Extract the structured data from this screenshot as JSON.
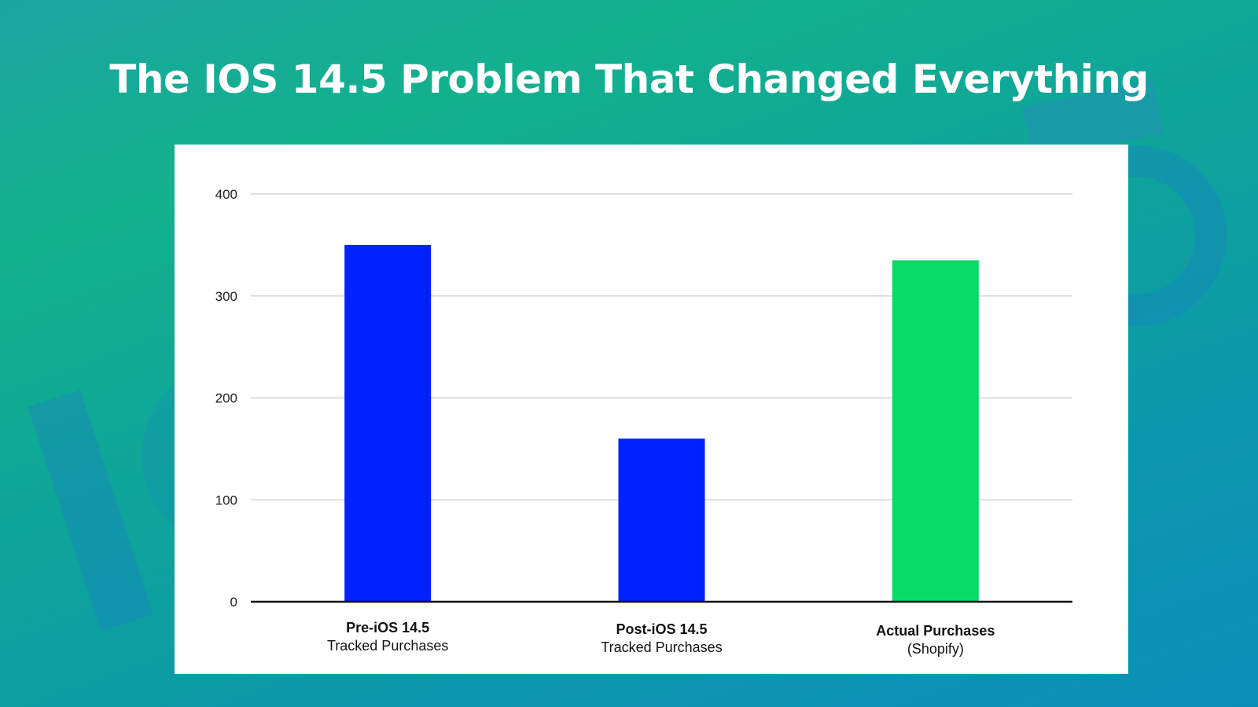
{
  "title": "The IOS 14.5 Problem That Changed Everything",
  "colors": {
    "blue_bar": "#0022ff",
    "green_bar": "#09db67",
    "grid": "#d4d4d4",
    "axis": "#111111"
  },
  "chart_data": {
    "type": "bar",
    "categories": [
      {
        "line1": "Pre-iOS 14.5",
        "line2": "Tracked Purchases"
      },
      {
        "line1": "Post-iOS 14.5",
        "line2": "Tracked Purchases"
      },
      {
        "line1": "Actual Purchases",
        "line2": "(Shopify)"
      }
    ],
    "values": [
      350,
      160,
      335
    ],
    "bar_colors": [
      "#0022ff",
      "#0022ff",
      "#09db67"
    ],
    "ylim": [
      0,
      400
    ],
    "yticks": [
      0,
      100,
      200,
      300,
      400
    ],
    "grid": true,
    "xlabel": "",
    "ylabel": ""
  }
}
